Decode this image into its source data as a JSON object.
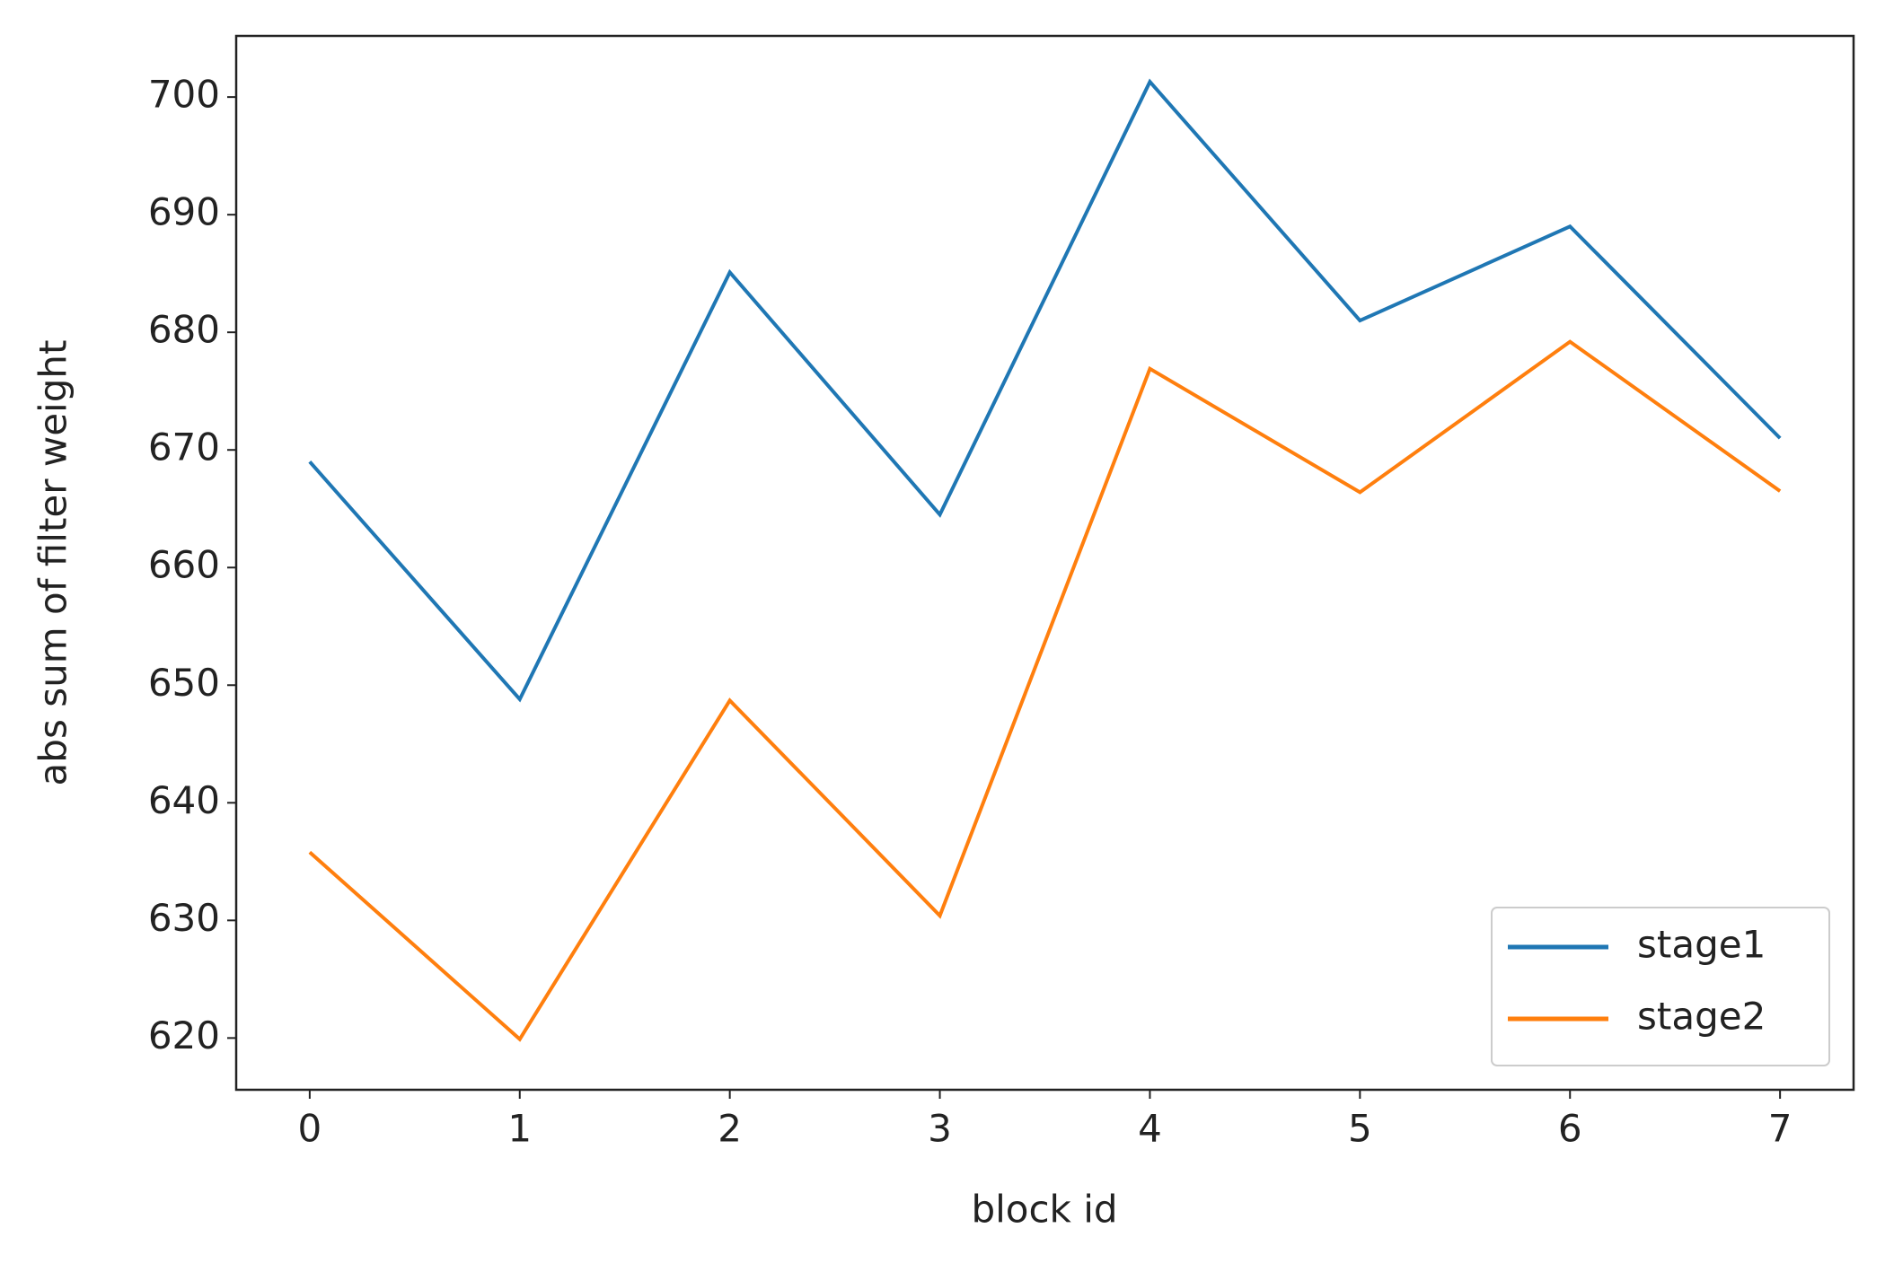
{
  "chart_data": {
    "type": "line",
    "x_label": "block id",
    "y_label": "abs sum of filter weight",
    "x": [
      0,
      1,
      2,
      3,
      4,
      5,
      6,
      7
    ],
    "series": [
      {
        "name": "stage1",
        "color": "#1f77b4",
        "values": [
          669.0,
          648.8,
          685.1,
          664.5,
          701.3,
          681.0,
          689.0,
          671.0
        ]
      },
      {
        "name": "stage2",
        "color": "#ff7f0e",
        "values": [
          635.8,
          619.9,
          648.7,
          630.4,
          676.9,
          666.4,
          679.2,
          666.5
        ]
      }
    ],
    "xlim": [
      -0.35,
      7.35
    ],
    "ylim": [
      615.6,
      705.2
    ],
    "xticks": [
      0,
      1,
      2,
      3,
      4,
      5,
      6,
      7
    ],
    "yticks": [
      620,
      630,
      640,
      650,
      660,
      670,
      680,
      690,
      700
    ],
    "grid": false,
    "legend": "lower right"
  }
}
